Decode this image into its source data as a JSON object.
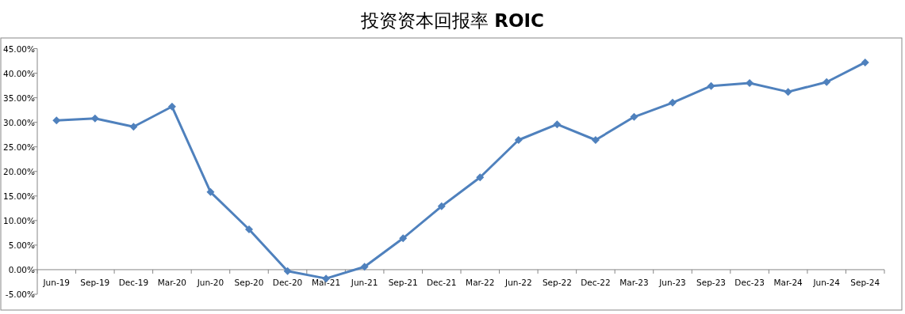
{
  "chart_data": {
    "type": "line",
    "title": "投资资本回报率 **ROIC**",
    "categories": [
      "Jun-19",
      "Sep-19",
      "Dec-19",
      "Mar-20",
      "Jun-20",
      "Sep-20",
      "Dec-20",
      "Mar-21",
      "Jun-21",
      "Sep-21",
      "Dec-21",
      "Mar-22",
      "Jun-22",
      "Sep-22",
      "Dec-22",
      "Mar-23",
      "Jun-23",
      "Sep-23",
      "Dec-23",
      "Mar-24",
      "Jun-24",
      "Sep-24"
    ],
    "series": [
      {
        "color": "#4f81bd",
        "values": [
          30.4,
          30.8,
          29.1,
          33.2,
          15.8,
          8.2,
          -0.3,
          -1.8,
          0.6,
          6.4,
          12.9,
          18.8,
          26.4,
          29.6,
          26.4,
          31.1,
          34.0,
          37.4,
          38.0,
          36.2,
          38.2,
          42.2
        ]
      }
    ],
    "ylim": [
      -5,
      45
    ],
    "yticks": [
      {
        "value": -5,
        "label": "-5.00%"
      },
      {
        "value": 0,
        "label": "0.00%"
      },
      {
        "value": 5,
        "label": "5.00%"
      },
      {
        "value": 10,
        "label": "10.00%"
      },
      {
        "value": 15,
        "label": "15.00%"
      },
      {
        "value": 20,
        "label": "20.00%"
      },
      {
        "value": 25,
        "label": "25.00%"
      },
      {
        "value": 30,
        "label": "30.00%"
      },
      {
        "value": 35,
        "label": "35.00%"
      },
      {
        "value": 40,
        "label": "40.00%"
      },
      {
        "value": 45,
        "label": "45.00%"
      }
    ],
    "marker": "diamond",
    "line_style": "solid"
  }
}
